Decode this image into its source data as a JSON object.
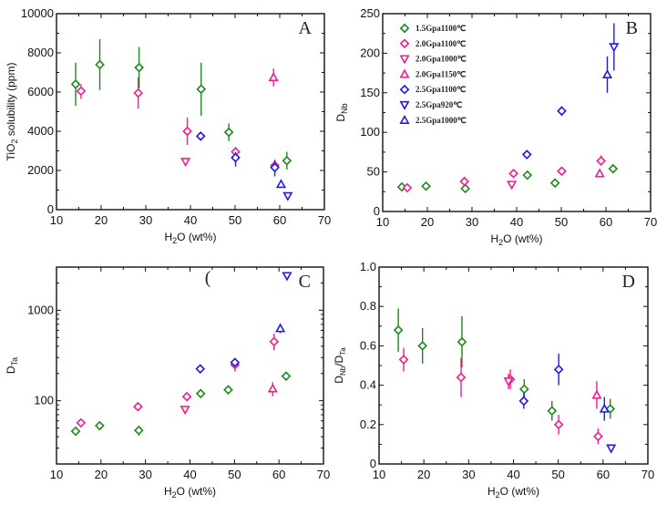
{
  "series_styles": [
    {
      "key": "s1",
      "name": "1.5Gpa1100℃",
      "marker": "diamond",
      "color": "#1a8a1a"
    },
    {
      "key": "s2",
      "name": "2.0Gpa1100℃",
      "marker": "diamond",
      "color": "#ee1e8c"
    },
    {
      "key": "s3",
      "name": "2.0Gpa1000℃",
      "marker": "triangle-down",
      "color": "#ee1e8c"
    },
    {
      "key": "s4",
      "name": "2.0Gpa1150℃",
      "marker": "triangle-up",
      "color": "#ee1e8c"
    },
    {
      "key": "s5",
      "name": "2.5Gpa1100℃",
      "marker": "diamond",
      "color": "#1a1aee"
    },
    {
      "key": "s6",
      "name": "2.5Gpa920℃",
      "marker": "triangle-down",
      "color": "#1a1aee"
    },
    {
      "key": "s7",
      "name": "2.5Gpa1000℃",
      "marker": "triangle-up",
      "color": "#1a1aee"
    }
  ],
  "chart_data": [
    {
      "id": "A",
      "type": "scatter",
      "panel_label": "A",
      "xlabel": "H2O (wt%)",
      "ylabel": "TiO2 solubility (ppm)",
      "xlim": [
        10,
        70
      ],
      "ylim": [
        0,
        10000
      ],
      "yscale": "linear",
      "xticks": [
        10,
        20,
        30,
        40,
        50,
        60,
        70
      ],
      "yticks": [
        0,
        2000,
        4000,
        6000,
        8000,
        10000
      ],
      "extra_text": "",
      "legend": false,
      "series": [
        {
          "key": "s1",
          "points": [
            {
              "x": 14.3,
              "y": 6400,
              "lo": 5300,
              "hi": 7500
            },
            {
              "x": 19.7,
              "y": 7400,
              "lo": 6100,
              "hi": 8700
            },
            {
              "x": 28.5,
              "y": 7250,
              "lo": 6200,
              "hi": 8300
            },
            {
              "x": 42.4,
              "y": 6150,
              "lo": 4800,
              "hi": 7500
            },
            {
              "x": 48.6,
              "y": 3950,
              "lo": 3500,
              "hi": 4400
            },
            {
              "x": 61.6,
              "y": 2500,
              "lo": 2050,
              "hi": 2950
            }
          ]
        },
        {
          "key": "s2",
          "points": [
            {
              "x": 15.5,
              "y": 6050,
              "lo": 5650,
              "hi": 6400
            },
            {
              "x": 28.3,
              "y": 5950,
              "lo": 5150,
              "hi": 6750
            },
            {
              "x": 39.3,
              "y": 4000,
              "lo": 3300,
              "hi": 4700
            },
            {
              "x": 50.1,
              "y": 2950,
              "lo": 2700,
              "hi": 3200
            },
            {
              "x": 58.9,
              "y": 2250,
              "lo": 2050,
              "hi": 2400
            }
          ]
        },
        {
          "key": "s3",
          "points": [
            {
              "x": 38.9,
              "y": 2450,
              "lo": 2300,
              "hi": 2600
            }
          ]
        },
        {
          "key": "s4",
          "points": [
            {
              "x": 58.6,
              "y": 6750,
              "lo": 6300,
              "hi": 7200
            }
          ]
        },
        {
          "key": "s5",
          "points": [
            {
              "x": 42.3,
              "y": 3750,
              "lo": 3650,
              "hi": 3850
            },
            {
              "x": 50.1,
              "y": 2650,
              "lo": 2200,
              "hi": 2950
            },
            {
              "x": 58.9,
              "y": 2150,
              "lo": 1700,
              "hi": 2550
            }
          ]
        },
        {
          "key": "s6",
          "points": [
            {
              "x": 61.8,
              "y": 700,
              "lo": 650,
              "hi": 750
            }
          ]
        },
        {
          "key": "s7",
          "points": [
            {
              "x": 60.3,
              "y": 1300,
              "lo": 1250,
              "hi": 1350
            }
          ]
        }
      ]
    },
    {
      "id": "B",
      "type": "scatter",
      "panel_label": "B",
      "xlabel": "H2O (wt%)",
      "ylabel": "DNb",
      "xlim": [
        10,
        70
      ],
      "ylim": [
        0,
        250
      ],
      "yscale": "linear",
      "xticks": [
        10,
        20,
        30,
        40,
        50,
        60,
        70
      ],
      "yticks": [
        0,
        50,
        100,
        150,
        200,
        250
      ],
      "extra_text": "",
      "legend": true,
      "legend_position": "top-left",
      "series": [
        {
          "key": "s1",
          "points": [
            {
              "x": 14.3,
              "y": 31
            },
            {
              "x": 19.7,
              "y": 32
            },
            {
              "x": 28.5,
              "y": 29
            },
            {
              "x": 42.4,
              "y": 46
            },
            {
              "x": 48.6,
              "y": 36
            },
            {
              "x": 61.6,
              "y": 54
            }
          ]
        },
        {
          "key": "s2",
          "points": [
            {
              "x": 15.5,
              "y": 30
            },
            {
              "x": 28.3,
              "y": 38
            },
            {
              "x": 39.3,
              "y": 48
            },
            {
              "x": 50.1,
              "y": 51
            },
            {
              "x": 58.9,
              "y": 64,
              "lo": 58,
              "hi": 71
            }
          ]
        },
        {
          "key": "s3",
          "points": [
            {
              "x": 38.9,
              "y": 34
            }
          ]
        },
        {
          "key": "s4",
          "points": [
            {
              "x": 58.6,
              "y": 48,
              "lo": 44,
              "hi": 50
            }
          ]
        },
        {
          "key": "s5",
          "points": [
            {
              "x": 42.3,
              "y": 72
            },
            {
              "x": 50.1,
              "y": 127,
              "lo": 121,
              "hi": 133
            }
          ]
        },
        {
          "key": "s6",
          "points": [
            {
              "x": 61.8,
              "y": 208,
              "lo": 178,
              "hi": 238
            }
          ]
        },
        {
          "key": "s7",
          "points": [
            {
              "x": 60.3,
              "y": 173,
              "lo": 150,
              "hi": 196
            }
          ]
        }
      ]
    },
    {
      "id": "C",
      "type": "scatter",
      "panel_label": "C",
      "xlabel": "H2O (wt%)",
      "ylabel": "DTa",
      "xlim": [
        10,
        70
      ],
      "ylim": [
        20,
        3000
      ],
      "yscale": "log",
      "xticks": [
        10,
        20,
        30,
        40,
        50,
        60,
        70
      ],
      "yticks": [
        100,
        1000
      ],
      "extra_text": "(",
      "legend": false,
      "series": [
        {
          "key": "s1",
          "points": [
            {
              "x": 14.3,
              "y": 46,
              "lo": 42,
              "hi": 50
            },
            {
              "x": 19.7,
              "y": 53,
              "lo": 49,
              "hi": 57
            },
            {
              "x": 28.5,
              "y": 47,
              "lo": 41,
              "hi": 53
            },
            {
              "x": 42.4,
              "y": 120,
              "lo": 113,
              "hi": 127
            },
            {
              "x": 48.6,
              "y": 132,
              "lo": 118,
              "hi": 148
            },
            {
              "x": 61.6,
              "y": 187,
              "lo": 168,
              "hi": 208
            }
          ]
        },
        {
          "key": "s2",
          "points": [
            {
              "x": 15.5,
              "y": 57
            },
            {
              "x": 28.3,
              "y": 86,
              "lo": 79,
              "hi": 94
            },
            {
              "x": 39.3,
              "y": 111
            },
            {
              "x": 50.1,
              "y": 250,
              "lo": 210,
              "hi": 290
            },
            {
              "x": 58.9,
              "y": 450,
              "lo": 360,
              "hi": 550
            }
          ]
        },
        {
          "key": "s3",
          "points": [
            {
              "x": 38.9,
              "y": 80
            }
          ]
        },
        {
          "key": "s4",
          "points": [
            {
              "x": 58.6,
              "y": 136,
              "lo": 112,
              "hi": 160
            }
          ]
        },
        {
          "key": "s5",
          "points": [
            {
              "x": 42.3,
              "y": 225
            },
            {
              "x": 50.1,
              "y": 265,
              "lo": 245,
              "hi": 290
            }
          ]
        },
        {
          "key": "s6",
          "points": [
            {
              "x": 61.8,
              "y": 2400
            }
          ]
        },
        {
          "key": "s7",
          "points": [
            {
              "x": 60.3,
              "y": 630,
              "lo": 560,
              "hi": 700
            }
          ]
        }
      ]
    },
    {
      "id": "D",
      "type": "scatter",
      "panel_label": "D",
      "xlabel": "H2O (wt%)",
      "ylabel": "DNb/DTa",
      "xlim": [
        10,
        70
      ],
      "ylim": [
        0,
        1.0
      ],
      "yscale": "linear",
      "xticks": [
        10,
        20,
        30,
        40,
        50,
        60,
        70
      ],
      "yticks": [
        0,
        0.2,
        0.4,
        0.6,
        0.8,
        1.0
      ],
      "ytick_labels": [
        "0",
        "0.2",
        "0.4",
        "0.6",
        "0.8",
        "1.0"
      ],
      "extra_text": "",
      "legend": false,
      "series": [
        {
          "key": "s1",
          "points": [
            {
              "x": 14.3,
              "y": 0.68,
              "lo": 0.57,
              "hi": 0.79
            },
            {
              "x": 19.7,
              "y": 0.6,
              "lo": 0.51,
              "hi": 0.69
            },
            {
              "x": 28.5,
              "y": 0.62,
              "lo": 0.49,
              "hi": 0.75
            },
            {
              "x": 42.4,
              "y": 0.38,
              "lo": 0.33,
              "hi": 0.43
            },
            {
              "x": 48.6,
              "y": 0.27,
              "lo": 0.22,
              "hi": 0.32
            },
            {
              "x": 61.6,
              "y": 0.28,
              "lo": 0.23,
              "hi": 0.33
            }
          ]
        },
        {
          "key": "s2",
          "points": [
            {
              "x": 15.5,
              "y": 0.53,
              "lo": 0.47,
              "hi": 0.59
            },
            {
              "x": 28.3,
              "y": 0.44,
              "lo": 0.34,
              "hi": 0.54
            },
            {
              "x": 39.3,
              "y": 0.43,
              "lo": 0.38,
              "hi": 0.48
            },
            {
              "x": 50.1,
              "y": 0.2,
              "lo": 0.15,
              "hi": 0.25
            },
            {
              "x": 58.9,
              "y": 0.14,
              "lo": 0.1,
              "hi": 0.18
            }
          ]
        },
        {
          "key": "s3",
          "points": [
            {
              "x": 38.9,
              "y": 0.42,
              "lo": 0.38,
              "hi": 0.46
            }
          ]
        },
        {
          "key": "s4",
          "points": [
            {
              "x": 58.6,
              "y": 0.35,
              "lo": 0.28,
              "hi": 0.42
            }
          ]
        },
        {
          "key": "s5",
          "points": [
            {
              "x": 42.3,
              "y": 0.32,
              "lo": 0.28,
              "hi": 0.36
            },
            {
              "x": 50.1,
              "y": 0.48,
              "lo": 0.4,
              "hi": 0.56
            }
          ]
        },
        {
          "key": "s6",
          "points": [
            {
              "x": 61.8,
              "y": 0.08
            }
          ]
        },
        {
          "key": "s7",
          "points": [
            {
              "x": 60.3,
              "y": 0.28,
              "lo": 0.22,
              "hi": 0.34
            }
          ]
        }
      ]
    }
  ]
}
